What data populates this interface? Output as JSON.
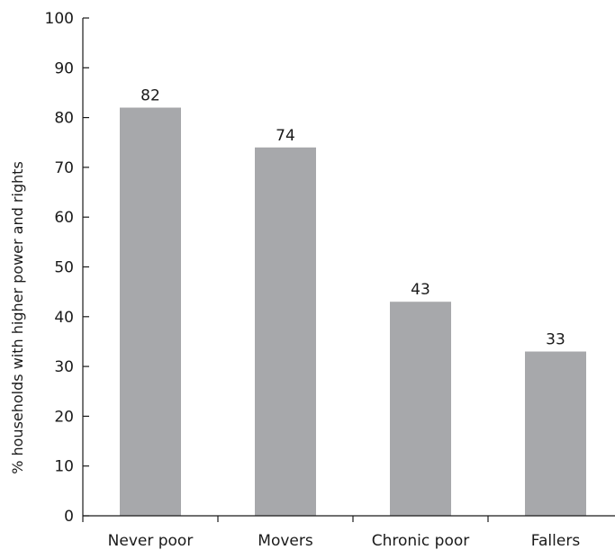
{
  "chart_data": {
    "type": "bar",
    "title": "",
    "xlabel": "",
    "ylabel": "% households with higher power and rights",
    "categories": [
      "Never poor",
      "Movers",
      "Chronic poor",
      "Fallers"
    ],
    "values": [
      82,
      74,
      43,
      33
    ],
    "data_labels": [
      "82",
      "74",
      "43",
      "33"
    ],
    "ylim": [
      0,
      100
    ],
    "yticks": [
      0,
      10,
      20,
      30,
      40,
      50,
      60,
      70,
      80,
      90,
      100
    ],
    "ytick_labels": [
      "0",
      "10",
      "20",
      "30",
      "40",
      "50",
      "60",
      "70",
      "80",
      "90",
      "100"
    ],
    "grid": false,
    "legend": "none",
    "bar_color": "#a7a8ab",
    "axis_color": "#1a1a1a"
  }
}
